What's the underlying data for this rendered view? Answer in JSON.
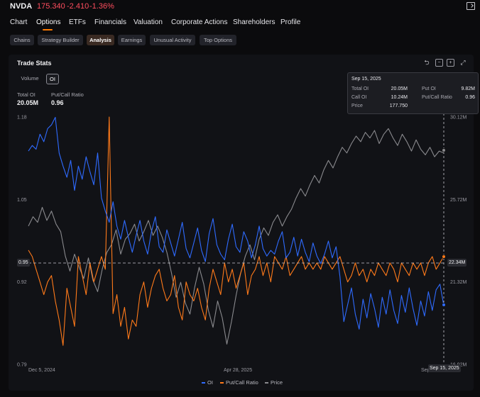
{
  "header": {
    "ticker": "NVDA",
    "price": "175.340",
    "change": "-2.410",
    "change_pct": "-1.36%",
    "exit_icon": "exit-icon"
  },
  "nav": {
    "tabs": [
      "Chart",
      "Options",
      "ETFs",
      "Financials",
      "Valuation",
      "Corporate Actions",
      "Shareholders",
      "Profile"
    ],
    "active": "Options"
  },
  "subnav": {
    "tabs": [
      "Chains",
      "Strategy Builder",
      "Analysis",
      "Earnings",
      "Unusual Activity",
      "Top Options"
    ],
    "active": "Analysis"
  },
  "card": {
    "title": "Trade Stats",
    "controls": [
      "undo-icon",
      "zoom-out-icon",
      "zoom-in-icon",
      "expand-icon"
    ],
    "toggles": [
      "Volume",
      "OI"
    ],
    "active_toggle": "OI",
    "stats": [
      {
        "label": "Total OI",
        "value": "20.05M"
      },
      {
        "label": "Put/Call Ratio",
        "value": "0.96"
      }
    ]
  },
  "tooltip": {
    "date": "Sep 15, 2025",
    "rows": [
      {
        "k1": "Total OI",
        "v1": "20.05M",
        "k2": "Put OI",
        "v2": "9.82M"
      },
      {
        "k1": "Call OI",
        "v1": "10.24M",
        "k2": "Put/Call Ratio",
        "v2": "0.96"
      },
      {
        "k1": "Price",
        "v1": "177.750",
        "k2": "",
        "v2": ""
      }
    ]
  },
  "crosshair": {
    "left_label": "0.95",
    "right_label": "22.34M",
    "date_label": "Sep 15, 2025"
  },
  "chart_data": {
    "type": "line",
    "grid": false,
    "legend": "bottom-center",
    "left_axis": {
      "ticks": [
        "1.18",
        "1.05",
        "0.92",
        "0.79"
      ],
      "range": [
        0.79,
        1.18
      ]
    },
    "right_axis": {
      "ticks": [
        "30.12M",
        "25.72M",
        "21.32M",
        "16.92M"
      ],
      "range": [
        16.92,
        30.12
      ]
    },
    "x_ticks": [
      "Dec 5, 2024",
      "Apr 28, 2025",
      "Sep"
    ],
    "x_range": [
      "2024-12-05",
      "2025-09-15"
    ],
    "series": [
      {
        "name": "OI",
        "axis": "right",
        "color": "#2f6bff",
        "values": [
          28.3,
          28.6,
          28.4,
          29.2,
          28.8,
          29.5,
          29.7,
          30.1,
          28.2,
          27.5,
          26.9,
          27.8,
          26.2,
          27.5,
          26.8,
          28.0,
          27.2,
          26.5,
          28.2,
          25.8,
          25.1,
          24.5,
          25.6,
          24.3,
          23.6,
          24.6,
          23.7,
          22.9,
          23.8,
          24.6,
          23.5,
          22.8,
          24.0,
          24.8,
          23.2,
          22.9,
          24.1,
          23.4,
          22.7,
          23.6,
          24.5,
          23.1,
          22.6,
          23.4,
          24.2,
          23.0,
          22.4,
          23.9,
          24.7,
          23.3,
          22.8,
          22.5,
          23.6,
          24.4,
          23.2,
          22.9,
          24.0,
          23.5,
          22.6,
          23.3,
          24.3,
          23.1,
          22.7,
          23.0,
          22.8,
          23.5,
          24.0,
          22.6,
          22.9,
          23.7,
          22.7,
          23.6,
          22.9,
          22.4,
          23.4,
          22.7,
          22.3,
          22.8,
          23.5,
          22.6,
          23.2,
          21.6,
          19.2,
          20.1,
          21.0,
          19.6,
          18.8,
          20.4,
          19.4,
          20.7,
          19.9,
          18.9,
          20.5,
          19.6,
          20.9,
          19.8,
          19.1,
          20.6,
          19.7,
          21.0,
          19.9,
          19.0,
          20.3,
          19.5,
          20.8,
          19.8,
          20.9,
          21.2,
          20.05
        ]
      },
      {
        "name": "Put/Call Ratio",
        "axis": "left",
        "color": "#ff7a1a",
        "values": [
          0.97,
          0.96,
          0.94,
          0.92,
          0.9,
          0.92,
          0.93,
          0.89,
          0.86,
          0.82,
          0.91,
          0.88,
          0.85,
          0.96,
          0.93,
          0.9,
          0.95,
          0.92,
          0.94,
          0.96,
          0.94,
          1.18,
          0.87,
          0.9,
          0.85,
          0.88,
          0.83,
          0.86,
          0.85,
          0.9,
          0.92,
          0.88,
          0.91,
          0.93,
          0.94,
          0.91,
          0.89,
          0.9,
          0.93,
          0.88,
          0.86,
          0.92,
          0.9,
          0.89,
          0.91,
          0.88,
          0.86,
          0.91,
          0.94,
          0.92,
          0.9,
          0.95,
          0.92,
          0.94,
          0.91,
          0.93,
          0.95,
          0.9,
          0.93,
          0.94,
          0.96,
          0.93,
          0.95,
          0.92,
          0.96,
          0.95,
          0.94,
          0.96,
          0.93,
          0.94,
          0.95,
          0.96,
          0.94,
          0.95,
          0.94,
          0.95,
          0.94,
          0.96,
          0.95,
          0.94,
          0.95,
          0.96,
          0.94,
          0.92,
          0.93,
          0.95,
          0.93,
          0.94,
          0.92,
          0.94,
          0.93,
          0.95,
          0.94,
          0.93,
          0.95,
          0.94,
          0.92,
          0.95,
          0.94,
          0.93,
          0.95,
          0.94,
          0.95,
          0.93,
          0.95,
          0.96,
          0.94,
          0.95,
          0.96
        ]
      },
      {
        "name": "Price",
        "axis": "right",
        "color": "#8a8a8e",
        "values": [
          24.3,
          24.8,
          24.5,
          25.3,
          24.6,
          25.1,
          24.4,
          24.0,
          22.7,
          21.9,
          22.8,
          22.1,
          21.5,
          22.6,
          21.4,
          20.8,
          22.0,
          22.9,
          23.3,
          24.1,
          22.8,
          23.6,
          23.9,
          24.4,
          23.5,
          24.0,
          24.6,
          23.8,
          24.3,
          23.7,
          22.9,
          21.8,
          20.5,
          21.3,
          20.2,
          19.6,
          21.0,
          22.1,
          21.2,
          19.8,
          18.9,
          20.3,
          19.4,
          18.0,
          19.2,
          20.6,
          21.8,
          22.7,
          23.3,
          22.5,
          23.6,
          24.2,
          23.8,
          24.5,
          24.9,
          24.3,
          24.8,
          25.2,
          25.8,
          26.3,
          25.9,
          26.5,
          27.0,
          26.6,
          27.3,
          27.8,
          27.4,
          28.0,
          28.5,
          28.2,
          28.7,
          29.1,
          28.8,
          29.3,
          29.0,
          29.4,
          28.7,
          29.2,
          29.5,
          29.0,
          28.6,
          29.2,
          28.8,
          28.3,
          28.9,
          28.4,
          28.1,
          28.5,
          28.0,
          28.3,
          28.2
        ]
      }
    ]
  },
  "legend": [
    {
      "name": "OI",
      "color": "#2f6bff"
    },
    {
      "name": "Put/Call Ratio",
      "color": "#ff7a1a"
    },
    {
      "name": "Price",
      "color": "#8a8a8e"
    }
  ]
}
